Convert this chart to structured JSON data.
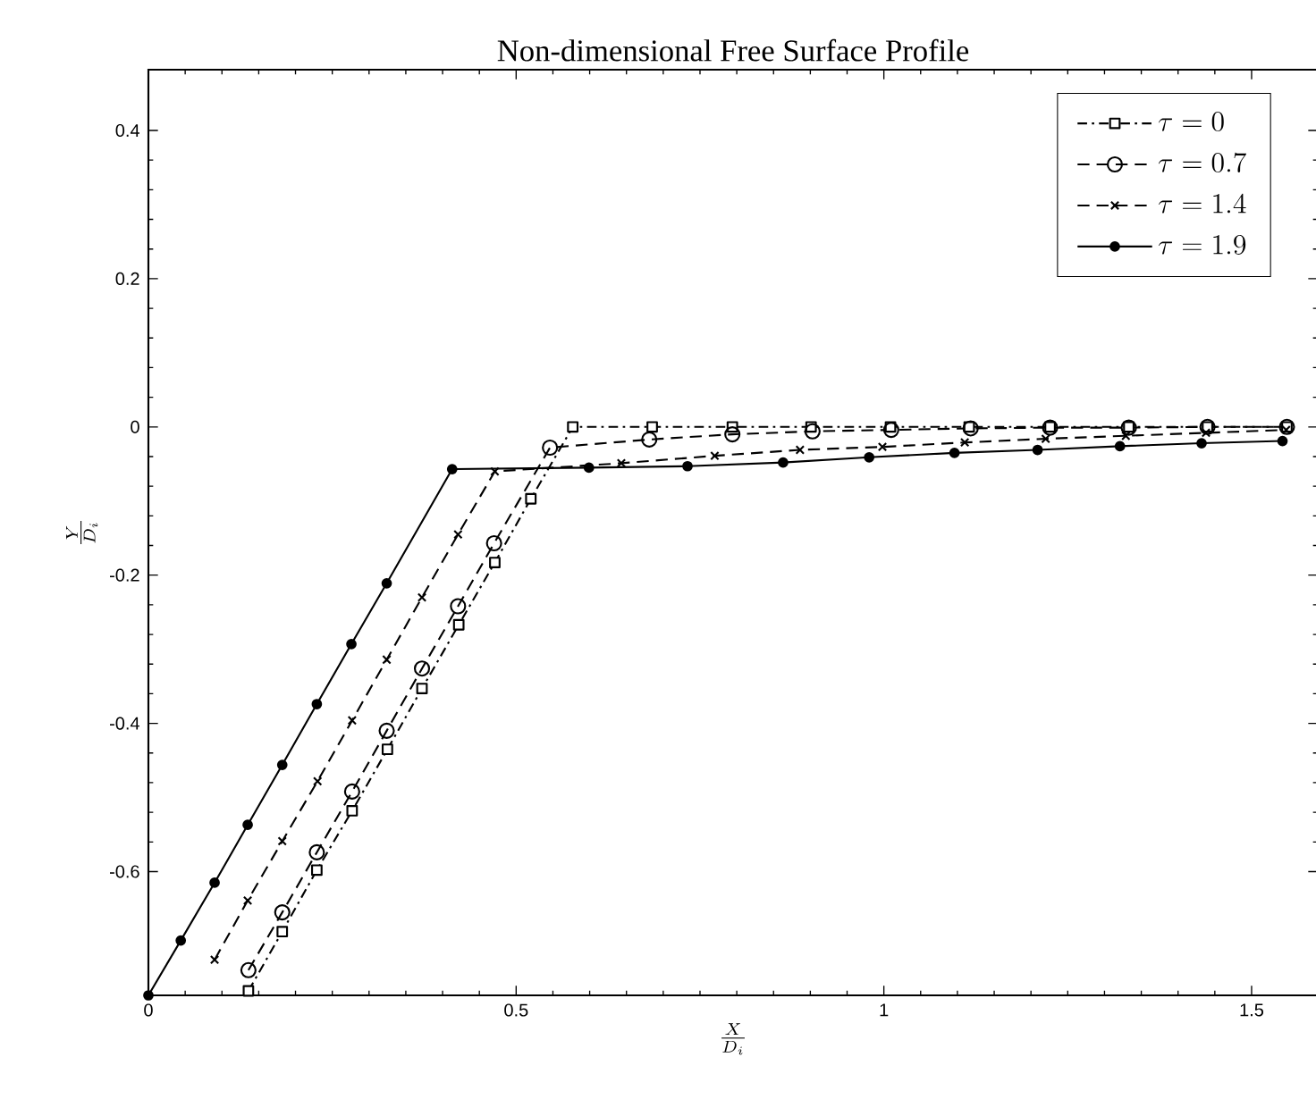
{
  "chart_data": {
    "type": "line",
    "title": "Non-dimensional Free Surface Profile",
    "xlabel": "\\frac{X}{D_i}",
    "ylabel": "\\frac{Y}{D_i}",
    "xlim": [
      0,
      1.59
    ],
    "ylim": [
      -0.767,
      0.482
    ],
    "xticks": [
      0,
      0.5,
      1,
      1.5
    ],
    "yticks": [
      {
        "value": -0.6,
        "label": "-0.6"
      },
      {
        "value": -0.4,
        "label": "-0.4"
      },
      {
        "value": -0.2,
        "label": "-0.2"
      },
      0,
      0.2,
      0.4
    ],
    "grid": false,
    "legend": "top right",
    "series": [
      {
        "name": "\\tau = 0",
        "color": "#000000",
        "marker": "square",
        "line_style": "dashdot",
        "x": [
          0.136,
          0.182,
          0.229,
          0.277,
          0.325,
          0.372,
          0.422,
          0.471,
          0.52,
          0.577,
          0.685,
          0.794,
          0.901,
          1.009,
          1.116,
          1.226,
          1.333,
          1.44,
          1.548
        ],
        "values": [
          -0.761,
          -0.681,
          -0.598,
          -0.518,
          -0.435,
          -0.353,
          -0.267,
          -0.183,
          -0.097,
          0,
          0,
          0,
          0,
          0,
          0,
          0,
          0,
          0,
          0
        ]
      },
      {
        "name": "\\tau = 0.7",
        "color": "#000000",
        "marker": "circle",
        "line_style": "dashed",
        "x": [
          0.136,
          0.182,
          0.229,
          0.277,
          0.324,
          0.372,
          0.421,
          0.47,
          0.546,
          0.681,
          0.794,
          0.903,
          1.01,
          1.118,
          1.226,
          1.333,
          1.44,
          1.548
        ],
        "values": [
          -0.733,
          -0.655,
          -0.574,
          -0.492,
          -0.41,
          -0.326,
          -0.242,
          -0.157,
          -0.028,
          -0.017,
          -0.01,
          -0.006,
          -0.004,
          -0.002,
          -0.001,
          -0.001,
          0,
          0
        ]
      },
      {
        "name": "\\tau = 1.4",
        "color": "#000000",
        "marker": "cross",
        "line_style": "dashed",
        "x": [
          0.09,
          0.135,
          0.182,
          0.23,
          0.277,
          0.324,
          0.372,
          0.421,
          0.471,
          0.643,
          0.77,
          0.886,
          0.998,
          1.11,
          1.22,
          1.329,
          1.438,
          1.547
        ],
        "values": [
          -0.719,
          -0.639,
          -0.559,
          -0.478,
          -0.396,
          -0.314,
          -0.23,
          -0.145,
          -0.06,
          -0.049,
          -0.039,
          -0.031,
          -0.027,
          -0.021,
          -0.016,
          -0.012,
          -0.008,
          -0.004
        ]
      },
      {
        "name": "\\tau = 1.9",
        "color": "#000000",
        "marker": "circle",
        "line_style": "solid",
        "x": [
          0,
          0.044,
          0.09,
          0.135,
          0.182,
          0.229,
          0.276,
          0.324,
          0.413,
          0.599,
          0.733,
          0.863,
          0.98,
          1.096,
          1.209,
          1.321,
          1.432,
          1.542
        ],
        "values": [
          -0.767,
          -0.693,
          -0.615,
          -0.537,
          -0.456,
          -0.374,
          -0.293,
          -0.211,
          -0.057,
          -0.055,
          -0.053,
          -0.048,
          -0.041,
          -0.035,
          -0.031,
          -0.026,
          -0.022,
          -0.019
        ]
      }
    ]
  }
}
